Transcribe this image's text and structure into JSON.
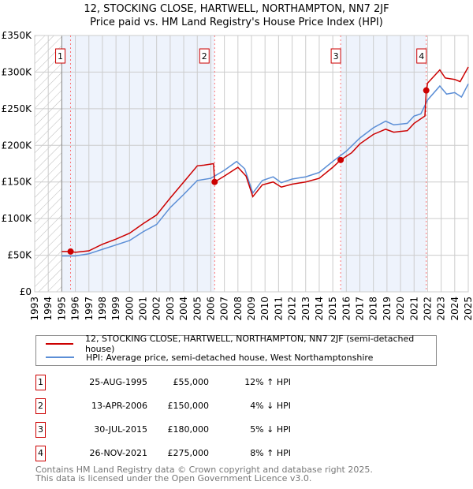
{
  "chart_data": {
    "type": "line",
    "title": "12, STOCKING CLOSE, HARTWELL, NORTHAMPTON, NN7 2JF",
    "subtitle": "Price paid vs. HM Land Registry's House Price Index (HPI)",
    "xlim": [
      1993,
      2025
    ],
    "ylim": [
      0,
      350000
    ],
    "x_ticks": [
      "1993",
      "1994",
      "1995",
      "1996",
      "1997",
      "1998",
      "1999",
      "2000",
      "2001",
      "2002",
      "2003",
      "2004",
      "2005",
      "2006",
      "2007",
      "2008",
      "2009",
      "2010",
      "2011",
      "2012",
      "2013",
      "2014",
      "2015",
      "2016",
      "2017",
      "2018",
      "2019",
      "2020",
      "2021",
      "2022",
      "2023",
      "2024",
      "2025"
    ],
    "y_ticks": [
      {
        "v": 0,
        "label": "£0"
      },
      {
        "v": 50000,
        "label": "£50K"
      },
      {
        "v": 100000,
        "label": "£100K"
      },
      {
        "v": 150000,
        "label": "£150K"
      },
      {
        "v": 200000,
        "label": "£200K"
      },
      {
        "v": 250000,
        "label": "£250K"
      },
      {
        "v": 300000,
        "label": "£300K"
      },
      {
        "v": 350000,
        "label": "£350K"
      }
    ],
    "grid": true,
    "series": [
      {
        "name": "12, STOCKING CLOSE, HARTWELL, NORTHAMPTON, NN7 2JF (semi-detached house)",
        "color": "#cc0000",
        "x": [
          1995,
          1995.65,
          1996,
          1997,
          1998,
          1999,
          2000,
          2001,
          2002,
          2003,
          2004,
          2005,
          2005.5,
          2006.2,
          2006.28,
          2007,
          2008,
          2008.6,
          2009.1,
          2009.8,
          2010.6,
          2011.2,
          2012,
          2013,
          2014,
          2015,
          2015.58,
          2016.4,
          2017,
          2018,
          2018.9,
          2019.5,
          2020.5,
          2021,
          2021.8,
          2021.9,
          2022,
          2022.9,
          2023.3,
          2024,
          2024.4,
          2025
        ],
        "y": [
          55000,
          55000,
          54000,
          56000,
          65000,
          72000,
          80000,
          93000,
          105000,
          128000,
          150000,
          172000,
          173000,
          175000,
          150000,
          158000,
          170000,
          158000,
          130000,
          146000,
          150000,
          143000,
          147000,
          150000,
          155000,
          170000,
          180000,
          190000,
          202000,
          215000,
          222000,
          218000,
          220000,
          230000,
          240000,
          275000,
          285000,
          303000,
          292000,
          290000,
          287000,
          307000
        ]
      },
      {
        "name": "HPI: Average price, semi-detached house, West Northamptonshire",
        "color": "#5b8ed6",
        "x": [
          1995,
          1996,
          1997,
          1998,
          1999,
          2000,
          2001,
          2002,
          2003,
          2004,
          2005,
          2006,
          2007,
          2007.9,
          2008.5,
          2009.1,
          2009.8,
          2010.6,
          2011.2,
          2012,
          2013,
          2014,
          2015,
          2016,
          2017,
          2018,
          2018.9,
          2019.5,
          2020.5,
          2021,
          2021.5,
          2022,
          2022.9,
          2023.4,
          2024,
          2024.5,
          2025
        ],
        "y": [
          49000,
          49000,
          52000,
          58000,
          64000,
          70000,
          82000,
          92000,
          115000,
          133000,
          152000,
          155000,
          166000,
          178000,
          168000,
          135000,
          152000,
          157000,
          149000,
          154000,
          157000,
          163000,
          178000,
          192000,
          210000,
          224000,
          233000,
          228000,
          230000,
          240000,
          243000,
          262000,
          281000,
          270000,
          272000,
          266000,
          284000
        ]
      }
    ],
    "sales": [
      {
        "n": "1",
        "date": "25-AUG-1995",
        "x": 1995.65,
        "price_value": 55000,
        "price": "£55,000",
        "hpi": "12% ↑ HPI"
      },
      {
        "n": "2",
        "date": "13-APR-2006",
        "x": 2006.28,
        "price_value": 150000,
        "price": "£150,000",
        "hpi": "4% ↓ HPI"
      },
      {
        "n": "3",
        "date": "30-JUL-2015",
        "x": 2015.58,
        "price_value": 180000,
        "price": "£180,000",
        "hpi": "5% ↓ HPI"
      },
      {
        "n": "4",
        "date": "26-NOV-2021",
        "x": 2021.9,
        "price_value": 275000,
        "price": "£275,000",
        "hpi": "8% ↑ HPI"
      }
    ]
  },
  "footer": {
    "line1": "Contains HM Land Registry data © Crown copyright and database right 2025.",
    "line2": "This data is licensed under the Open Government Licence v3.0."
  }
}
